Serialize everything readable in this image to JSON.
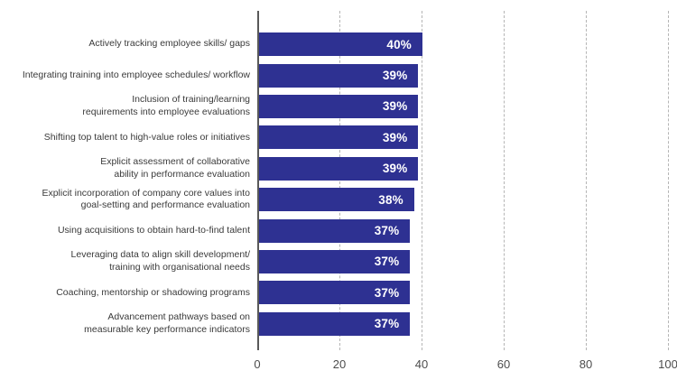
{
  "chart_data": {
    "type": "bar",
    "orientation": "horizontal",
    "title": "",
    "xlabel": "",
    "ylabel": "",
    "categories": [
      "Actively tracking employee skills/ gaps",
      "Integrating training into employee schedules/ workflow",
      "Inclusion of training/learning\nrequirements into employee evaluations",
      "Shifting top talent to high-value roles or initiatives",
      "Explicit assessment of collaborative\nability in performance evaluation",
      "Explicit incorporation of company core values into\ngoal-setting and performance evaluation",
      "Using acquisitions to obtain hard-to-find talent",
      "Leveraging data to align skill development/\ntraining with organisational needs",
      "Coaching, mentorship or shadowing programs",
      "Advancement pathways based on\nmeasurable key performance indicators"
    ],
    "values": [
      40,
      39,
      39,
      39,
      39,
      38,
      37,
      37,
      37,
      37
    ],
    "value_labels": [
      "40%",
      "39%",
      "39%",
      "39%",
      "39%",
      "38%",
      "37%",
      "37%",
      "37%",
      "37%"
    ],
    "x_ticks": [
      0,
      20,
      40,
      60,
      80,
      100
    ],
    "xlim": [
      0,
      100
    ],
    "grid": "vertical-dashed",
    "legend": "none",
    "colors": {
      "bar": "#2e3192",
      "bar_value_label": "#ffffff",
      "category_label": "#3a3a3a",
      "tick_label": "#4d4d4d",
      "gridline": "#b5b5b5",
      "zero_axis_line": "#595959",
      "background": "#ffffff"
    }
  }
}
